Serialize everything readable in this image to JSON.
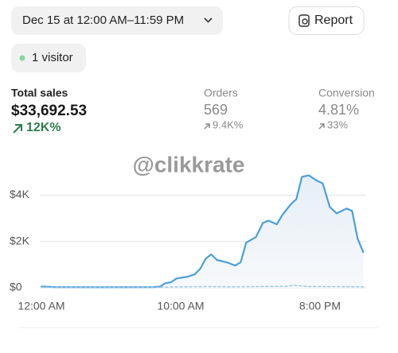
{
  "header": {
    "date_range": "Dec 15 at 12:00 AM–11:59 PM",
    "report": "Report"
  },
  "visitors": "1 visitor",
  "metrics": [
    {
      "label": "Total sales",
      "value": "$33,692.53",
      "change": "12K%"
    },
    {
      "label": "Orders",
      "value": "569",
      "change": "9.4K%"
    },
    {
      "label": "Conversion",
      "value": "4.81%",
      "change": "33%"
    }
  ],
  "watermark": "@clikkrate",
  "chart_data": {
    "type": "line",
    "xlim": [
      0,
      24
    ],
    "xticks": [
      {
        "value": 0,
        "label": "12:00 AM"
      },
      {
        "value": 10,
        "label": "10:00 AM"
      },
      {
        "value": 20,
        "label": "8:00 PM"
      }
    ],
    "ylim": [
      0,
      5000
    ],
    "yticks": [
      {
        "value": 0,
        "label": "$0"
      },
      {
        "value": 2000,
        "label": "$2K"
      },
      {
        "value": 4000,
        "label": "$4K"
      }
    ],
    "grid": true,
    "series": [
      {
        "color": "#4a9fd8",
        "style": "solid",
        "x": [
          0,
          1,
          4,
          8,
          8.5,
          8.9,
          9.3,
          9.7,
          10.5,
          11,
          11.4,
          11.8,
          12.2,
          12.6,
          13.3,
          13.9,
          14.3,
          14.7,
          15.4,
          15.9,
          16.3,
          16.9,
          17.3,
          17.9,
          18.3,
          18.7,
          19.2,
          19.7,
          20.2,
          20.7,
          21.2,
          21.9,
          22.3,
          22.7,
          23.1
        ],
        "values": [
          60,
          30,
          20,
          30,
          50,
          200,
          240,
          400,
          480,
          580,
          820,
          1260,
          1440,
          1200,
          1100,
          960,
          1100,
          1950,
          2190,
          2800,
          2900,
          2740,
          3150,
          3600,
          3830,
          4790,
          4850,
          4650,
          4500,
          3490,
          3210,
          3420,
          3320,
          2120,
          1540
        ]
      },
      {
        "color": "#9cc7e8",
        "style": "dashed",
        "x": [
          0,
          4,
          8,
          10,
          12,
          14,
          16,
          17.5,
          18.2,
          19,
          21,
          23.1
        ],
        "values": [
          20,
          10,
          20,
          40,
          50,
          40,
          60,
          60,
          110,
          60,
          50,
          40
        ]
      }
    ]
  }
}
